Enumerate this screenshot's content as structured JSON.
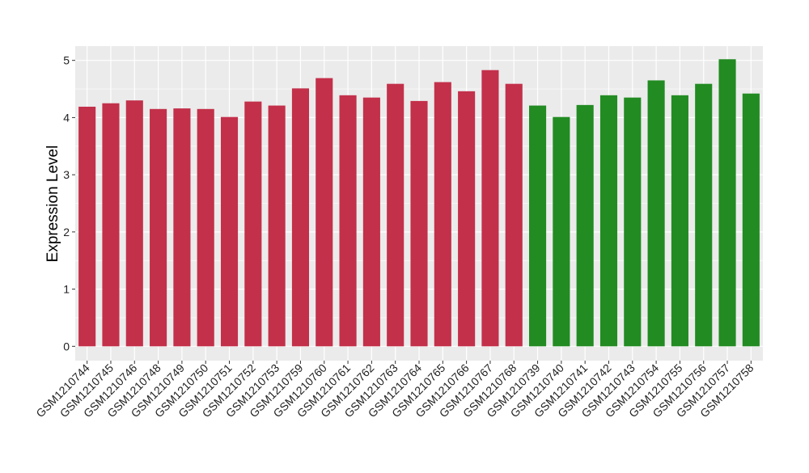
{
  "chart_data": {
    "type": "bar",
    "title": "",
    "xlabel": "",
    "ylabel": "Expression Level",
    "ylim": [
      -0.25,
      5.25
    ],
    "yticks": [
      0,
      1,
      2,
      3,
      4,
      5
    ],
    "grid": true,
    "legend": "none",
    "categories": [
      "GSM1210744",
      "GSM1210745",
      "GSM1210746",
      "GSM1210748",
      "GSM1210749",
      "GSM1210750",
      "GSM1210751",
      "GSM1210752",
      "GSM1210753",
      "GSM1210759",
      "GSM1210760",
      "GSM1210761",
      "GSM1210762",
      "GSM1210763",
      "GSM1210764",
      "GSM1210765",
      "GSM1210766",
      "GSM1210767",
      "GSM1210768",
      "GSM1210739",
      "GSM1210740",
      "GSM1210741",
      "GSM1210742",
      "GSM1210743",
      "GSM1210754",
      "GSM1210755",
      "GSM1210756",
      "GSM1210757",
      "GSM1210758"
    ],
    "values": [
      4.19,
      4.25,
      4.3,
      4.15,
      4.16,
      4.15,
      4.01,
      4.28,
      4.21,
      4.51,
      4.69,
      4.39,
      4.35,
      4.59,
      4.29,
      4.62,
      4.46,
      4.83,
      4.59,
      4.21,
      4.01,
      4.22,
      4.39,
      4.35,
      4.65,
      4.39,
      4.59,
      5.02,
      4.42
    ],
    "bar_colors": [
      "#c3304a",
      "#c3304a",
      "#c3304a",
      "#c3304a",
      "#c3304a",
      "#c3304a",
      "#c3304a",
      "#c3304a",
      "#c3304a",
      "#c3304a",
      "#c3304a",
      "#c3304a",
      "#c3304a",
      "#c3304a",
      "#c3304a",
      "#c3304a",
      "#c3304a",
      "#c3304a",
      "#c3304a",
      "#228b22",
      "#228b22",
      "#228b22",
      "#228b22",
      "#228b22",
      "#228b22",
      "#228b22",
      "#228b22",
      "#228b22",
      "#228b22"
    ],
    "panel_background": "#ebebeb",
    "grid_color": "#ffffff"
  }
}
